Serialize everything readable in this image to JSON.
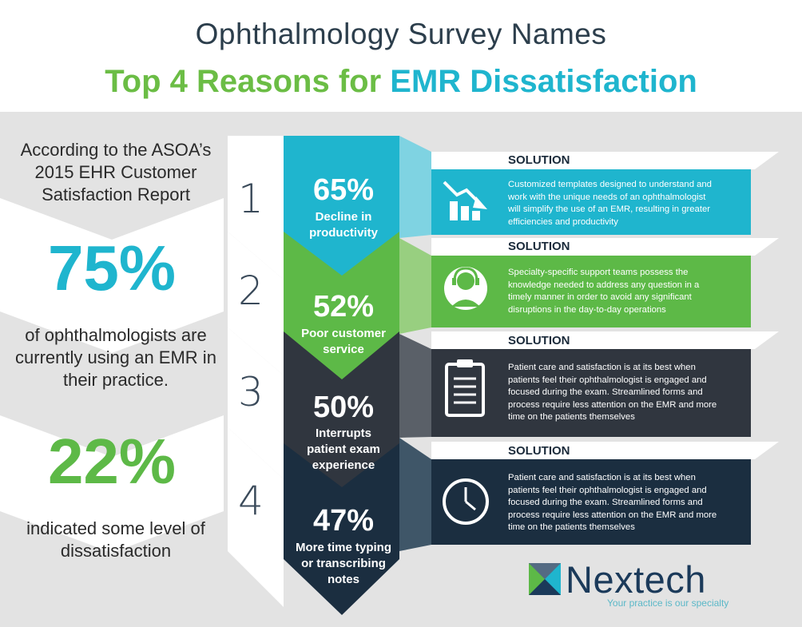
{
  "header": {
    "title_line1": "Ophthalmology Survey Names",
    "title_line2_part1": "Top 4 Reasons for ",
    "title_line2_part2": "EMR Dissatisfaction"
  },
  "left_panel": {
    "intro": [
      "According to the ASOA’s",
      "2015 EHR Customer",
      "Satisfaction Report"
    ],
    "stat1_value": "75%",
    "stat1_caption": [
      "of ophthalmologists are",
      "currently using an EMR in",
      "their practice."
    ],
    "stat2_value": "22%",
    "stat2_caption": [
      "indicated some level of",
      "dissatisfaction"
    ]
  },
  "reasons": [
    {
      "rank": "1",
      "percent": "65%",
      "label": [
        "Decline in",
        "productivity"
      ],
      "color": "#1fb5ce",
      "solution_label": "SOLUTION",
      "solution_text": [
        "Customized templates designed to understand and",
        "work with the unique needs of an ophthalmologist",
        "will simplify the use of an EMR, resulting in greater",
        "efficiencies and productivity"
      ],
      "icon": "declining-chart-icon"
    },
    {
      "rank": "2",
      "percent": "52%",
      "label": [
        "Poor customer",
        "service"
      ],
      "color": "#5db947",
      "solution_label": "SOLUTION",
      "solution_text": [
        "Specialty-specific support teams possess the",
        "knowledge needed to address any question in a",
        "timely manner in order to avoid any significant",
        "disruptions in the day-to-day operations"
      ],
      "icon": "headset-agent-icon"
    },
    {
      "rank": "3",
      "percent": "50%",
      "label": [
        "Interrupts",
        "patient exam",
        "experience"
      ],
      "color": "#30363f",
      "solution_label": "SOLUTION",
      "solution_text": [
        "Patient care and satisfaction is at its best when",
        "patients feel their ophthalmologist is engaged and",
        "focused during the exam. Streamlined forms and",
        "process require less attention on the EMR and more",
        "time on the patients themselves"
      ],
      "icon": "clipboard-icon"
    },
    {
      "rank": "4",
      "percent": "47%",
      "label": [
        "More time typing",
        "or transcribing",
        "notes"
      ],
      "color": "#1b2e40",
      "solution_label": "SOLUTION",
      "solution_text": [
        "Patient care and satisfaction is at its best when",
        "patients feel their ophthalmologist is engaged and",
        "focused during the exam. Streamlined forms and",
        "process require less attention on the EMR and more",
        "time on the patients themselves"
      ],
      "icon": "clock-icon"
    }
  ],
  "logo": {
    "name": "Nextech",
    "tagline": "Your practice is our specialty"
  }
}
